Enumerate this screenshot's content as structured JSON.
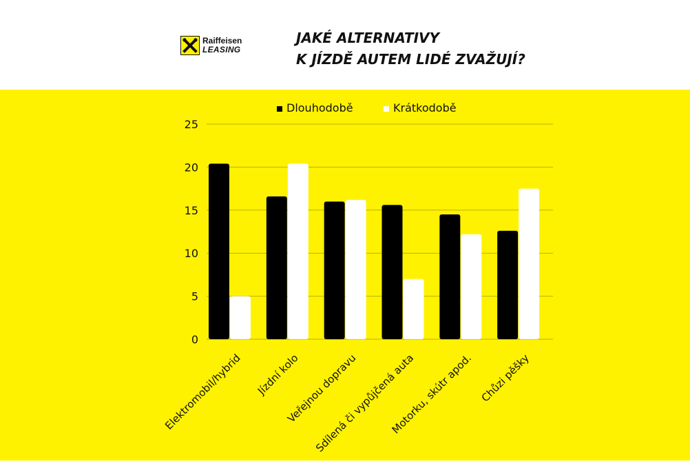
{
  "brand": {
    "name_line1": "Raiffeisen",
    "name_line2": "LEASING",
    "logo_icon": "raiffeisen-crossed-horses-icon",
    "accent_color": "#fff200"
  },
  "headline": {
    "line1": "JAKÉ ALTERNATIVY",
    "line2": "K JÍZDĚ AUTEM LIDÉ ZVAŽUJÍ?"
  },
  "chart_data": {
    "type": "bar",
    "categories": [
      "Elektromobil/hybrid",
      "Jízdní kolo",
      "Veřejnou dopravu",
      "Sdílená či vypůjčená auta",
      "Motorku, skútr apod.",
      "Chůzi pěšky"
    ],
    "series": [
      {
        "name": "Dlouhodobě",
        "color": "#000000",
        "values": [
          20.4,
          16.6,
          16.0,
          15.6,
          14.5,
          12.6
        ]
      },
      {
        "name": "Krátkodobě",
        "color": "#ffffff",
        "values": [
          5.0,
          20.4,
          16.2,
          7.0,
          12.2,
          17.5
        ]
      }
    ],
    "ylim": [
      0,
      25
    ],
    "yticks": [
      0,
      5,
      10,
      15,
      20,
      25
    ],
    "grid": true,
    "legend_position": "top-center",
    "background_color": "#fff200"
  }
}
